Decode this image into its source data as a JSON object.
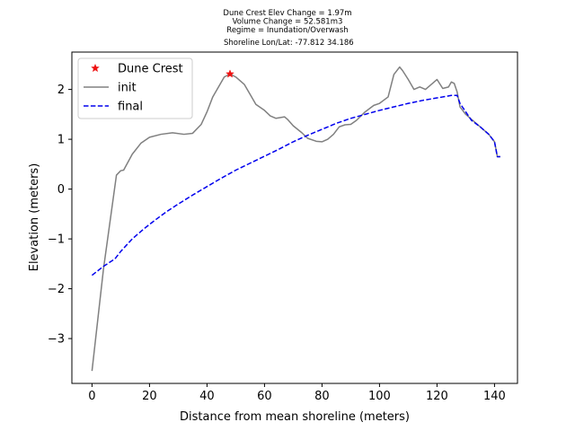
{
  "chart_data": {
    "type": "line",
    "title_lines": [
      "Dune Crest Elev Change = 1.97m",
      "Volume Change = 52.581m3",
      "Regime = Inundation/Overwash",
      " Shoreline Lon/Lat: -77.812 34.186"
    ],
    "xlabel": "Distance from mean shoreline (meters)",
    "ylabel": "Elevation (meters)",
    "xlim": [
      -7,
      148
    ],
    "ylim": [
      -3.9,
      2.75
    ],
    "xticks": [
      0,
      20,
      40,
      60,
      80,
      100,
      120,
      140
    ],
    "yticks": [
      -3,
      -2,
      -1,
      0,
      1,
      2
    ],
    "grid": false,
    "legend_position": "top-left",
    "series": [
      {
        "name": "init",
        "color": "#808080",
        "style": "solid",
        "x": [
          0,
          4,
          8.5,
          10,
          11,
          14,
          17,
          20,
          24,
          28,
          32,
          35,
          38,
          40,
          42,
          46,
          48,
          50,
          53,
          55,
          57,
          60,
          62,
          64,
          67,
          68,
          70,
          73,
          75,
          78,
          80,
          82,
          84,
          86,
          88,
          90,
          92,
          95,
          98,
          100,
          103,
          105,
          107,
          108,
          110,
          112,
          114,
          116,
          118,
          120,
          122,
          124,
          125,
          126,
          127,
          128,
          130,
          132,
          135,
          138,
          140,
          141,
          142
        ],
        "y": [
          -3.65,
          -1.6,
          0.28,
          0.37,
          0.38,
          0.7,
          0.92,
          1.04,
          1.1,
          1.13,
          1.1,
          1.12,
          1.3,
          1.55,
          1.85,
          2.25,
          2.31,
          2.25,
          2.1,
          1.9,
          1.7,
          1.58,
          1.47,
          1.42,
          1.45,
          1.4,
          1.27,
          1.13,
          1.02,
          0.96,
          0.95,
          1.0,
          1.1,
          1.25,
          1.29,
          1.3,
          1.38,
          1.55,
          1.68,
          1.72,
          1.85,
          2.3,
          2.45,
          2.38,
          2.2,
          2.0,
          2.05,
          2.0,
          2.1,
          2.2,
          2.02,
          2.05,
          2.15,
          2.12,
          1.95,
          1.65,
          1.5,
          1.4,
          1.25,
          1.1,
          0.95,
          0.65,
          0.65
        ]
      },
      {
        "name": "final",
        "color": "#0000ee",
        "style": "dashed",
        "x": [
          0,
          4,
          8,
          10,
          14,
          18,
          22,
          26,
          30,
          35,
          40,
          45,
          50,
          55,
          60,
          65,
          70,
          75,
          80,
          85,
          90,
          95,
          100,
          105,
          110,
          115,
          120,
          125,
          127,
          128,
          130,
          132,
          135,
          138,
          140,
          141,
          142
        ],
        "y": [
          -1.73,
          -1.55,
          -1.4,
          -1.25,
          -1.0,
          -0.8,
          -0.62,
          -0.45,
          -0.3,
          -0.12,
          0.05,
          0.22,
          0.38,
          0.52,
          0.66,
          0.8,
          0.95,
          1.08,
          1.2,
          1.32,
          1.42,
          1.5,
          1.58,
          1.65,
          1.72,
          1.78,
          1.83,
          1.88,
          1.88,
          1.72,
          1.55,
          1.38,
          1.25,
          1.1,
          0.95,
          0.65,
          0.65
        ]
      }
    ],
    "markers": [
      {
        "name": "Dune Crest",
        "color": "#ee1111",
        "symbol": "star",
        "x": 48,
        "y": 2.31
      }
    ]
  }
}
